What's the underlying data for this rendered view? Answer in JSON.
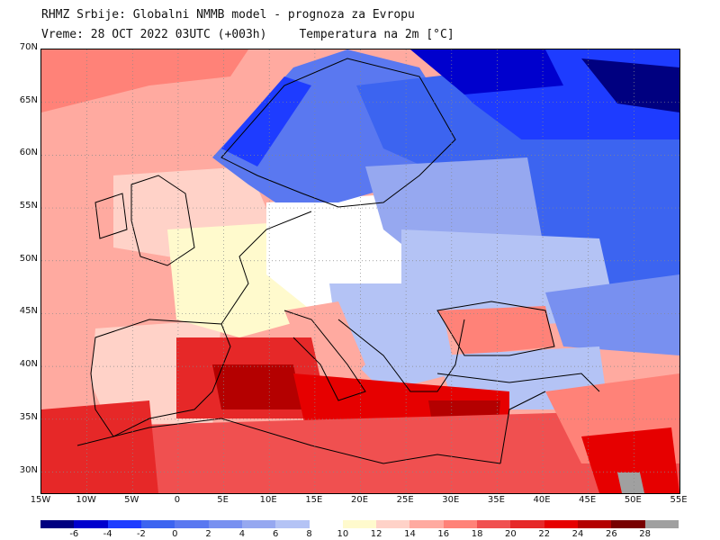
{
  "header": {
    "line1": "RHMZ Srbije: Globalni NMMB model - prognoza za Evropu",
    "valid_time": "Vreme: 28 OCT 2022 03UTC (+003h)",
    "parameter": "Temperatura na 2m [°C]"
  },
  "axes": {
    "lat_labels": [
      "70N",
      "65N",
      "60N",
      "55N",
      "50N",
      "45N",
      "40N",
      "35N",
      "30N"
    ],
    "lon_labels": [
      "15W",
      "10W",
      "5W",
      "0",
      "5E",
      "10E",
      "15E",
      "20E",
      "25E",
      "30E",
      "35E",
      "40E",
      "45E",
      "50E",
      "55E"
    ]
  },
  "colorbar": {
    "colors": [
      "#000080",
      "#0000cd",
      "#1e3cff",
      "#3c64f0",
      "#5a78f0",
      "#7890f0",
      "#96a8f0",
      "#b4c3f5",
      "#ffffff",
      "#fffacd",
      "#ffd2c8",
      "#ffaaa0",
      "#ff8278",
      "#f05050",
      "#e62828",
      "#e60000",
      "#b40000",
      "#780000",
      "#a0a0a0"
    ],
    "labels": [
      "-6",
      "-4",
      "-2",
      "0",
      "2",
      "4",
      "6",
      "8",
      "10",
      "12",
      "14",
      "16",
      "18",
      "20",
      "22",
      "24",
      "26",
      "28"
    ]
  },
  "map": {
    "lon_range": [
      -15,
      55
    ],
    "lat_range": [
      28,
      70
    ],
    "regions": [
      {
        "name": "scandinavia",
        "color": "#5a78f0"
      },
      {
        "name": "finland-karelia",
        "color": "#3c64f0"
      },
      {
        "name": "north-russia",
        "color": "#1e3cff"
      },
      {
        "name": "barents-coast",
        "color": "#0000cd"
      },
      {
        "name": "east-russia",
        "color": "#3c64f0"
      },
      {
        "name": "baltic-belarus",
        "color": "#96a8f0"
      },
      {
        "name": "ukraine",
        "color": "#b4c3f5"
      },
      {
        "name": "balkans",
        "color": "#b4c3f5"
      },
      {
        "name": "turkey",
        "color": "#b4c3f5"
      },
      {
        "name": "north-atlantic",
        "color": "#ffaaa0"
      },
      {
        "name": "iberia",
        "color": "#ffd2c8"
      },
      {
        "name": "western-mediterranean",
        "color": "#e62828"
      },
      {
        "name": "eastern-mediterranean",
        "color": "#e60000"
      },
      {
        "name": "north-africa",
        "color": "#f05050"
      },
      {
        "name": "black-sea",
        "color": "#ff8278"
      },
      {
        "name": "middle-east",
        "color": "#ff8278"
      }
    ]
  }
}
